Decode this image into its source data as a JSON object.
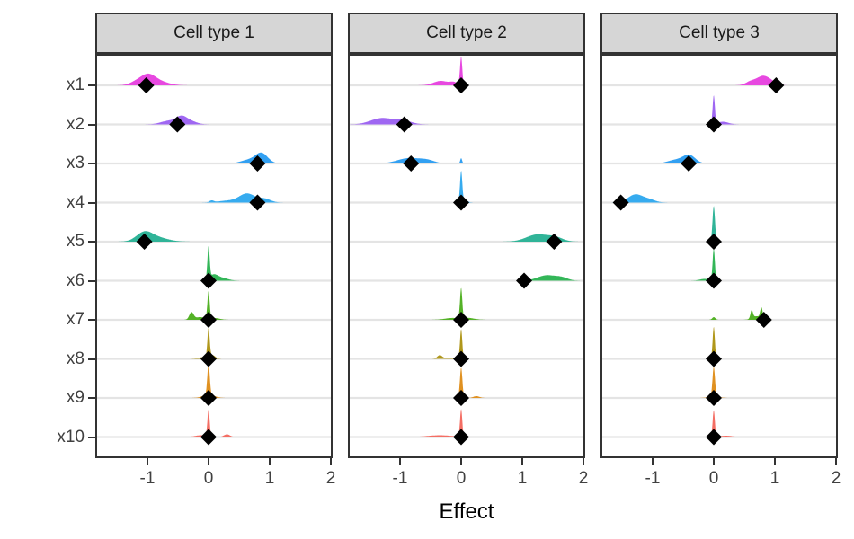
{
  "chart_data": {
    "type": "ridgeline",
    "xlabel": "Effect",
    "categories": [
      "x1",
      "x2",
      "x3",
      "x4",
      "x5",
      "x6",
      "x7",
      "x8",
      "x9",
      "x10"
    ],
    "colors": [
      "#E642DF",
      "#9C62F2",
      "#2B9DF2",
      "#2FA8EE",
      "#29B295",
      "#2CB453",
      "#4EAF20",
      "#AD9414",
      "#DF8D1A",
      "#F4695F"
    ],
    "point_color": "#000000",
    "gridline_color": "#e4e4e4",
    "panel_border_color": "#333333",
    "strip_bg": "#d6d6d6",
    "x_ticks": [
      "-1",
      "0",
      "1",
      "2"
    ],
    "x_tick_values": [
      -1,
      0,
      1,
      2
    ],
    "x_domain": [
      -1.853,
      2.029
    ],
    "facets": [
      {
        "label": "Cell type 1",
        "points": [
          -1.02,
          -0.51,
          0.8,
          0.8,
          -1.05,
          0,
          0,
          0,
          0,
          0
        ],
        "densities": [
          [
            [
              -1.0,
              0.12,
              11
            ],
            [
              -0.8,
              0.15,
              4
            ],
            [
              -1.2,
              0.1,
              3
            ]
          ],
          [
            [
              -0.44,
              0.09,
              8
            ],
            [
              -0.65,
              0.13,
              4
            ],
            [
              -0.28,
              0.1,
              3
            ]
          ],
          [
            [
              0.87,
              0.1,
              11
            ],
            [
              0.66,
              0.13,
              4
            ]
          ],
          [
            [
              0.63,
              0.13,
              10
            ],
            [
              0.92,
              0.1,
              4
            ],
            [
              0.05,
              0.035,
              2
            ],
            [
              0.3,
              0.15,
              2
            ]
          ],
          [
            [
              -1.05,
              0.13,
              10
            ],
            [
              -0.82,
              0.17,
              4
            ]
          ],
          [
            [
              0,
              0.018,
              36
            ],
            [
              0.08,
              0.07,
              6
            ],
            [
              0.22,
              0.1,
              3
            ]
          ],
          [
            [
              0,
              0.018,
              31
            ],
            [
              -0.28,
              0.035,
              8
            ],
            [
              -0.14,
              0.08,
              3
            ],
            [
              0.1,
              0.08,
              2
            ]
          ],
          [
            [
              0,
              0.018,
              32
            ],
            [
              0.06,
              0.05,
              4
            ],
            [
              -0.08,
              0.08,
              2
            ]
          ],
          [
            [
              0,
              0.02,
              34
            ],
            [
              0,
              0.09,
              4
            ]
          ],
          [
            [
              0,
              0.018,
              30
            ],
            [
              0.3,
              0.05,
              3
            ],
            [
              -0.12,
              0.1,
              2
            ]
          ]
        ]
      },
      {
        "label": "Cell type 2",
        "points": [
          0,
          -0.93,
          -0.82,
          0,
          1.52,
          1.03,
          0,
          0,
          0,
          0
        ],
        "densities": [
          [
            [
              0,
              0.018,
              32
            ],
            [
              -0.33,
              0.12,
              5
            ],
            [
              -0.12,
              0.06,
              3
            ]
          ],
          [
            [
              -1.3,
              0.18,
              7
            ],
            [
              -0.95,
              0.14,
              4
            ]
          ],
          [
            [
              -0.85,
              0.19,
              6
            ],
            [
              -0.55,
              0.12,
              3
            ],
            [
              0,
              0.015,
              6
            ]
          ],
          [
            [
              0,
              0.018,
              34
            ],
            [
              0.05,
              0.05,
              3
            ]
          ],
          [
            [
              1.25,
              0.18,
              8
            ],
            [
              1.55,
              0.12,
              4
            ]
          ],
          [
            [
              1.4,
              0.15,
              6
            ],
            [
              1.65,
              0.1,
              3
            ]
          ],
          [
            [
              0,
              0.018,
              34
            ],
            [
              -0.15,
              0.12,
              2
            ],
            [
              0.12,
              0.1,
              2
            ]
          ],
          [
            [
              0,
              0.018,
              33
            ],
            [
              -0.35,
              0.04,
              4
            ],
            [
              -0.15,
              0.1,
              1.5
            ]
          ],
          [
            [
              0,
              0.02,
              34
            ],
            [
              0.25,
              0.05,
              2
            ]
          ],
          [
            [
              0,
              0.018,
              31
            ],
            [
              -0.35,
              0.2,
              2
            ]
          ]
        ]
      },
      {
        "label": "Cell type 3",
        "points": [
          1.02,
          0,
          -0.41,
          -1.52,
          0,
          0,
          0.82,
          0,
          0,
          0
        ],
        "densities": [
          [
            [
              0.8,
              0.1,
              10
            ],
            [
              0.6,
              0.08,
              4
            ],
            [
              0.95,
              0.08,
              3
            ]
          ],
          [
            [
              0,
              0.018,
              32
            ],
            [
              0.15,
              0.09,
              3
            ]
          ],
          [
            [
              -0.4,
              0.1,
              9
            ],
            [
              -0.62,
              0.13,
              4
            ]
          ],
          [
            [
              -1.28,
              0.12,
              9
            ],
            [
              -1.05,
              0.1,
              3
            ]
          ],
          [
            [
              0,
              0.02,
              40
            ]
          ],
          [
            [
              0,
              0.018,
              36
            ],
            [
              -0.15,
              0.08,
              2
            ]
          ],
          [
            [
              0.78,
              0.02,
              12
            ],
            [
              0.62,
              0.02,
              9
            ],
            [
              0.7,
              0.07,
              4
            ],
            [
              0,
              0.025,
              3
            ]
          ],
          [
            [
              0,
              0.018,
              36
            ]
          ],
          [
            [
              0,
              0.02,
              33
            ],
            [
              0,
              0.08,
              2
            ]
          ],
          [
            [
              0,
              0.018,
              30
            ],
            [
              0.2,
              0.1,
              1.5
            ]
          ]
        ]
      }
    ]
  }
}
